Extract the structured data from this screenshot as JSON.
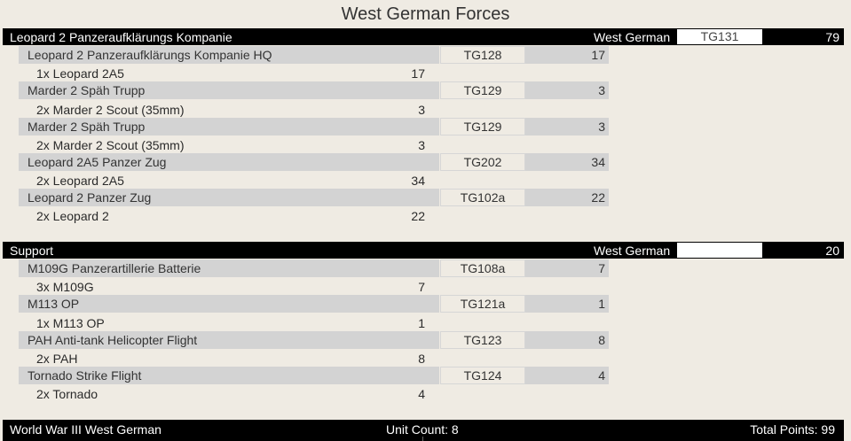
{
  "page_title": "West German Forces",
  "sections": [
    {
      "name": "Leopard 2 Panzeraufklärungs Kompanie",
      "nation": "West German",
      "code": "TG131",
      "points": "79",
      "units": [
        {
          "name": "Leopard 2 Panzeraufklärungs Kompanie HQ",
          "code": "TG128",
          "points": "17",
          "detail": "1x Leopard 2A5",
          "detail_points": "17"
        },
        {
          "name": "Marder 2 Späh Trupp",
          "code": "TG129",
          "points": "3",
          "detail": "2x Marder 2 Scout (35mm)",
          "detail_points": "3"
        },
        {
          "name": "Marder 2 Späh Trupp",
          "code": "TG129",
          "points": "3",
          "detail": "2x Marder 2 Scout (35mm)",
          "detail_points": "3"
        },
        {
          "name": "Leopard 2A5 Panzer Zug",
          "code": "TG202",
          "points": "34",
          "detail": "2x Leopard 2A5",
          "detail_points": "34"
        },
        {
          "name": "Leopard 2 Panzer Zug",
          "code": "TG102a",
          "points": "22",
          "detail": "2x Leopard 2",
          "detail_points": "22"
        }
      ]
    },
    {
      "name": "Support",
      "nation": "West German",
      "code": "",
      "points": "20",
      "units": [
        {
          "name": "M109G Panzerartillerie Batterie",
          "code": "TG108a",
          "points": "7",
          "detail": "3x M109G",
          "detail_points": "7"
        },
        {
          "name": "M113 OP",
          "code": "TG121a",
          "points": "1",
          "detail": "1x M113 OP",
          "detail_points": "1"
        },
        {
          "name": "PAH Anti-tank Helicopter Flight",
          "code": "TG123",
          "points": "8",
          "detail": "2x PAH",
          "detail_points": "8"
        },
        {
          "name": "Tornado Strike Flight",
          "code": "TG124",
          "points": "4",
          "detail": "2x Tornado",
          "detail_points": "4"
        }
      ]
    }
  ],
  "footer": {
    "force": "World War III West German",
    "unit_count": "Unit Count: 8",
    "total_points": "Total Points: 99"
  },
  "colors": {
    "background": "#efebe3",
    "header_bar": "#000000",
    "row_shade": "#d3d3d3"
  }
}
